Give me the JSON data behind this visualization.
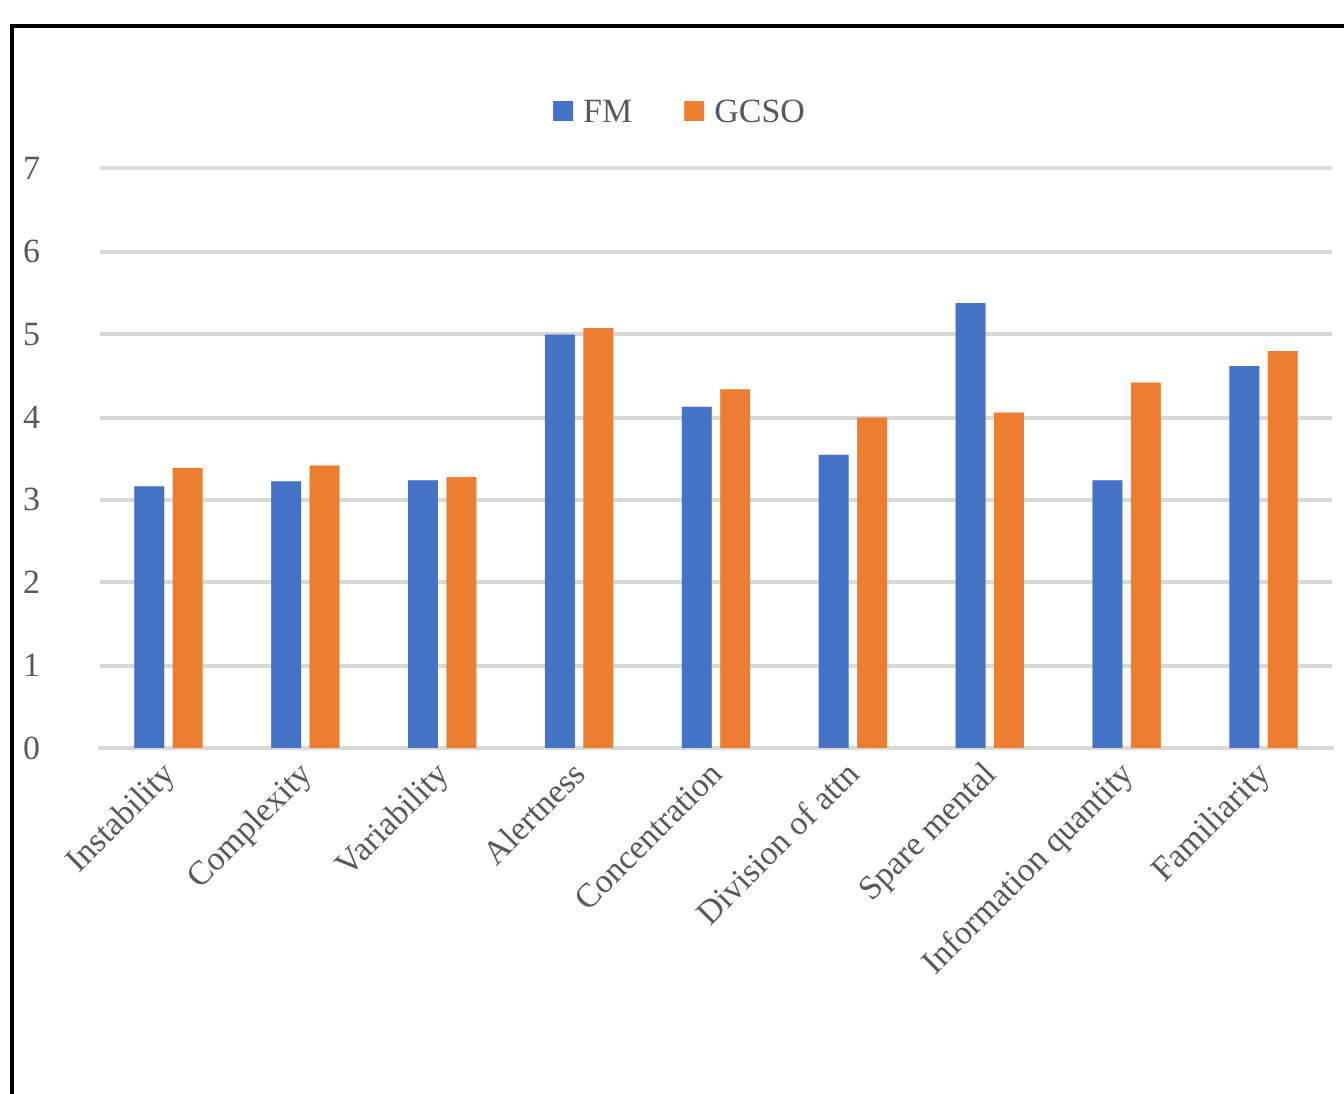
{
  "chart_data": {
    "type": "bar",
    "categories": [
      "Instability",
      "Complexity",
      "Variability",
      "Alertness",
      "Concentration",
      "Division of attn",
      "Spare mental",
      "Information quantity",
      "Familiarity"
    ],
    "series": [
      {
        "name": "FM",
        "color": "#4472c4",
        "values": [
          3.16,
          3.22,
          3.23,
          4.99,
          4.12,
          3.54,
          5.37,
          3.23,
          4.61
        ]
      },
      {
        "name": "GCSO",
        "color": "#ed7d31",
        "values": [
          3.38,
          3.41,
          3.27,
          5.07,
          4.33,
          3.99,
          4.05,
          4.41,
          4.79
        ]
      }
    ],
    "ylim": [
      0,
      7
    ],
    "yticks": [
      0,
      1,
      2,
      3,
      4,
      5,
      6,
      7
    ],
    "grid": "y",
    "legend": "top"
  }
}
